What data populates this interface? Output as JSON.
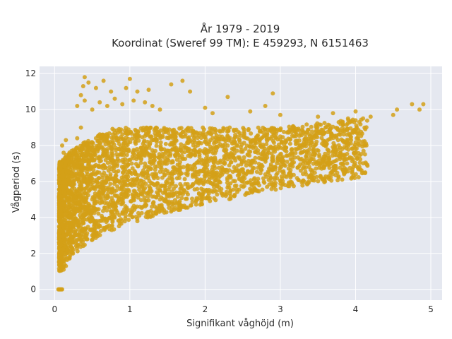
{
  "chart_data": {
    "type": "scatter",
    "title": "År 1979 - 2019",
    "subtitle": "Koordinat (Sweref 99 TM): E 459293, N 6151463",
    "xlabel": "Signifikant våghöjd (m)",
    "ylabel": "Vågperiod (s)",
    "xlim": [
      -0.2,
      5.15
    ],
    "ylim": [
      -0.6,
      12.4
    ],
    "xticks": [
      0,
      1,
      2,
      3,
      4,
      5
    ],
    "yticks": [
      0,
      2,
      4,
      6,
      8,
      10,
      12
    ],
    "grid": true,
    "marker_color": "#D4A017",
    "background_color": "#E5E8F0",
    "series": [
      {
        "points": [
          [
            0.05,
            0.0
          ],
          [
            0.06,
            0.0
          ],
          [
            0.07,
            0.0
          ],
          [
            0.08,
            0.0
          ],
          [
            0.09,
            0.0
          ],
          [
            0.1,
            0.0
          ],
          [
            0.08,
            1.5
          ],
          [
            0.1,
            1.2
          ],
          [
            0.12,
            1.1
          ],
          [
            0.15,
            1.3
          ],
          [
            0.1,
            2.0
          ],
          [
            0.08,
            2.6
          ],
          [
            0.12,
            3.0
          ],
          [
            0.1,
            3.6
          ],
          [
            0.15,
            4.2
          ],
          [
            0.1,
            5.0
          ],
          [
            0.12,
            5.6
          ],
          [
            0.1,
            6.3
          ],
          [
            0.14,
            7.0
          ],
          [
            0.12,
            7.6
          ],
          [
            0.1,
            8.0
          ],
          [
            0.15,
            8.3
          ],
          [
            0.2,
            1.8
          ],
          [
            0.25,
            2.2
          ],
          [
            0.3,
            2.5
          ],
          [
            0.2,
            3.5
          ],
          [
            0.3,
            4.5
          ],
          [
            0.25,
            6.0
          ],
          [
            0.2,
            7.5
          ],
          [
            0.3,
            8.4
          ],
          [
            0.35,
            9.0
          ],
          [
            0.3,
            10.2
          ],
          [
            0.35,
            10.8
          ],
          [
            0.38,
            11.3
          ],
          [
            0.4,
            11.8
          ],
          [
            0.45,
            11.5
          ],
          [
            0.4,
            10.5
          ],
          [
            0.5,
            10.0
          ],
          [
            0.55,
            11.2
          ],
          [
            0.6,
            10.4
          ],
          [
            0.65,
            11.6
          ],
          [
            0.7,
            10.2
          ],
          [
            0.75,
            11.0
          ],
          [
            0.8,
            10.6
          ],
          [
            0.9,
            10.3
          ],
          [
            0.95,
            11.2
          ],
          [
            1.0,
            11.7
          ],
          [
            1.05,
            10.5
          ],
          [
            1.1,
            11.0
          ],
          [
            1.2,
            10.4
          ],
          [
            1.25,
            11.1
          ],
          [
            1.3,
            10.2
          ],
          [
            1.4,
            10.0
          ],
          [
            1.55,
            11.4
          ],
          [
            1.7,
            11.6
          ],
          [
            1.8,
            11.0
          ],
          [
            2.0,
            10.1
          ],
          [
            2.1,
            9.8
          ],
          [
            2.3,
            10.7
          ],
          [
            2.6,
            9.9
          ],
          [
            2.8,
            10.2
          ],
          [
            2.9,
            10.9
          ],
          [
            3.0,
            9.7
          ],
          [
            0.5,
            3.0
          ],
          [
            0.6,
            3.5
          ],
          [
            0.8,
            4.0
          ],
          [
            1.0,
            4.4
          ],
          [
            1.2,
            4.7
          ],
          [
            1.4,
            5.0
          ],
          [
            1.6,
            5.3
          ],
          [
            1.8,
            5.7
          ],
          [
            2.0,
            6.0
          ],
          [
            2.2,
            6.3
          ],
          [
            2.4,
            6.6
          ],
          [
            2.6,
            6.9
          ],
          [
            2.8,
            7.2
          ],
          [
            3.0,
            7.5
          ],
          [
            3.2,
            7.8
          ],
          [
            3.4,
            8.0
          ],
          [
            0.5,
            5.0
          ],
          [
            0.8,
            6.0
          ],
          [
            1.0,
            6.5
          ],
          [
            1.2,
            7.0
          ],
          [
            1.5,
            7.2
          ],
          [
            1.8,
            7.5
          ],
          [
            2.0,
            7.8
          ],
          [
            2.3,
            8.0
          ],
          [
            2.6,
            8.3
          ],
          [
            3.0,
            8.5
          ],
          [
            3.3,
            8.8
          ],
          [
            3.6,
            9.0
          ],
          [
            3.8,
            9.2
          ],
          [
            4.0,
            9.4
          ],
          [
            4.1,
            9.5
          ],
          [
            4.2,
            9.6
          ],
          [
            3.5,
            9.6
          ],
          [
            3.7,
            9.8
          ],
          [
            3.9,
            9.5
          ],
          [
            4.0,
            9.9
          ],
          [
            4.05,
            9.3
          ],
          [
            4.5,
            9.7
          ],
          [
            4.55,
            10.0
          ],
          [
            4.75,
            10.3
          ],
          [
            4.85,
            10.0
          ],
          [
            4.9,
            10.3
          ]
        ]
      }
    ]
  }
}
